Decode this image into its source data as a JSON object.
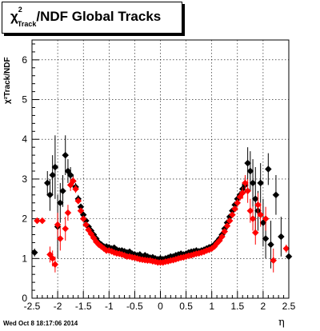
{
  "title": {
    "prefix": "χ",
    "sup": "2",
    "sub": "Track",
    "rest": "/NDF  Global Tracks"
  },
  "timestamp": "Wed Oct  8 18:17:06 2014",
  "xlabel": "η",
  "ylabel": "χ²Track/NDF",
  "chart_data": {
    "type": "scatter",
    "title": "χ²Track/NDF  Global Tracks",
    "xlabel": "η",
    "ylabel": "χ²Track/NDF",
    "xlim": [
      -2.5,
      2.5
    ],
    "ylim": [
      0,
      6.5
    ],
    "xticks": [
      "-2.5",
      "-2",
      "-1.5",
      "-1",
      "-0.5",
      "0",
      "0.5",
      "1",
      "1.5",
      "2",
      "2.5"
    ],
    "yticks": [
      "0",
      "1",
      "2",
      "3",
      "4",
      "5",
      "6"
    ],
    "grid": true,
    "series": [
      {
        "color": "#000000",
        "marker": "diamond",
        "points": [
          [
            -2.45,
            1.15,
            0.1
          ],
          [
            -2.2,
            2.9,
            0.3
          ],
          [
            -2.15,
            2.6,
            0.4
          ],
          [
            -2.1,
            3.1,
            0.5
          ],
          [
            -2.05,
            3.3,
            0.8
          ],
          [
            -2.0,
            1.8,
            0.8
          ],
          [
            -1.95,
            2.4,
            0.5
          ],
          [
            -1.9,
            2.7,
            0.4
          ],
          [
            -1.85,
            3.6,
            0.5
          ],
          [
            -1.8,
            3.2,
            0.3
          ],
          [
            -1.75,
            3.1,
            0.2
          ],
          [
            -1.7,
            2.95,
            0.15
          ],
          [
            -1.65,
            2.8,
            0.1
          ],
          [
            -1.6,
            2.5,
            0.1
          ],
          [
            -1.55,
            2.3,
            0.08
          ],
          [
            -1.5,
            2.1,
            0.07
          ],
          [
            -1.45,
            1.95,
            0.06
          ],
          [
            -1.4,
            1.8,
            0.05
          ],
          [
            -1.35,
            1.7,
            0.05
          ],
          [
            -1.3,
            1.6,
            0.04
          ],
          [
            -1.25,
            1.5,
            0.04
          ],
          [
            -1.2,
            1.4,
            0.04
          ],
          [
            -1.15,
            1.35,
            0.03
          ],
          [
            -1.1,
            1.3,
            0.03
          ],
          [
            -1.05,
            1.3,
            0.03
          ],
          [
            -1.0,
            1.28,
            0.03
          ],
          [
            -0.95,
            1.25,
            0.03
          ],
          [
            -0.9,
            1.27,
            0.03
          ],
          [
            -0.85,
            1.22,
            0.03
          ],
          [
            -0.8,
            1.2,
            0.03
          ],
          [
            -0.75,
            1.2,
            0.03
          ],
          [
            -0.7,
            1.18,
            0.03
          ],
          [
            -0.65,
            1.15,
            0.03
          ],
          [
            -0.6,
            1.17,
            0.03
          ],
          [
            -0.55,
            1.12,
            0.03
          ],
          [
            -0.5,
            1.1,
            0.03
          ],
          [
            -0.45,
            1.08,
            0.03
          ],
          [
            -0.4,
            1.1,
            0.03
          ],
          [
            -0.35,
            1.05,
            0.03
          ],
          [
            -0.3,
            1.08,
            0.03
          ],
          [
            -0.25,
            1.05,
            0.03
          ],
          [
            -0.2,
            1.02,
            0.03
          ],
          [
            -0.15,
            1.03,
            0.03
          ],
          [
            -0.1,
            1.0,
            0.03
          ],
          [
            -0.05,
            0.98,
            0.03
          ],
          [
            0.0,
            1.0,
            0.03
          ],
          [
            0.05,
            0.98,
            0.03
          ],
          [
            0.1,
            1.0,
            0.03
          ],
          [
            0.15,
            1.02,
            0.03
          ],
          [
            0.2,
            1.05,
            0.03
          ],
          [
            0.25,
            1.05,
            0.03
          ],
          [
            0.3,
            1.08,
            0.03
          ],
          [
            0.35,
            1.1,
            0.03
          ],
          [
            0.4,
            1.12,
            0.03
          ],
          [
            0.45,
            1.1,
            0.03
          ],
          [
            0.5,
            1.12,
            0.03
          ],
          [
            0.55,
            1.15,
            0.03
          ],
          [
            0.6,
            1.17,
            0.03
          ],
          [
            0.65,
            1.18,
            0.03
          ],
          [
            0.7,
            1.2,
            0.03
          ],
          [
            0.75,
            1.18,
            0.03
          ],
          [
            0.8,
            1.2,
            0.03
          ],
          [
            0.85,
            1.22,
            0.03
          ],
          [
            0.9,
            1.25,
            0.03
          ],
          [
            0.95,
            1.28,
            0.03
          ],
          [
            1.0,
            1.3,
            0.03
          ],
          [
            1.05,
            1.35,
            0.04
          ],
          [
            1.1,
            1.42,
            0.04
          ],
          [
            1.15,
            1.5,
            0.04
          ],
          [
            1.2,
            1.6,
            0.05
          ],
          [
            1.25,
            1.75,
            0.05
          ],
          [
            1.3,
            1.9,
            0.05
          ],
          [
            1.35,
            2.05,
            0.06
          ],
          [
            1.4,
            2.2,
            0.07
          ],
          [
            1.45,
            2.35,
            0.08
          ],
          [
            1.5,
            2.5,
            0.1
          ],
          [
            1.55,
            2.6,
            0.1
          ],
          [
            1.6,
            2.75,
            0.15
          ],
          [
            1.65,
            2.85,
            0.2
          ],
          [
            1.7,
            3.4,
            0.4
          ],
          [
            1.75,
            3.2,
            0.5
          ],
          [
            1.8,
            2.9,
            0.6
          ],
          [
            1.85,
            2.5,
            0.8
          ],
          [
            1.9,
            2.2,
            0.5
          ],
          [
            1.95,
            2.9,
            0.5
          ],
          [
            2.0,
            1.9,
            0.6
          ],
          [
            2.05,
            1.5,
            0.5
          ],
          [
            2.1,
            3.25,
            0.4
          ],
          [
            2.15,
            1.35,
            0.6
          ],
          [
            2.25,
            2.6,
            0.5
          ],
          [
            2.35,
            1.55,
            0.5
          ],
          [
            2.5,
            1.05,
            0.1
          ]
        ]
      },
      {
        "color": "#ff0000",
        "marker": "diamond",
        "points": [
          [
            -2.4,
            1.95,
            0.05
          ],
          [
            -2.3,
            1.95,
            0.05
          ],
          [
            -2.15,
            1.1,
            0.2
          ],
          [
            -2.1,
            1.0,
            0.2
          ],
          [
            -2.05,
            0.85,
            0.2
          ],
          [
            -2.0,
            1.85,
            0.3
          ],
          [
            -1.95,
            1.5,
            0.3
          ],
          [
            -1.85,
            1.75,
            0.3
          ],
          [
            -1.8,
            2.15,
            0.2
          ],
          [
            -1.75,
            2.85,
            0.15
          ],
          [
            -1.7,
            2.95,
            0.1
          ],
          [
            -1.65,
            2.75,
            0.1
          ],
          [
            -1.6,
            2.45,
            0.08
          ],
          [
            -1.55,
            2.2,
            0.07
          ],
          [
            -1.5,
            2.0,
            0.06
          ],
          [
            -1.45,
            1.85,
            0.05
          ],
          [
            -1.4,
            1.72,
            0.05
          ],
          [
            -1.35,
            1.62,
            0.05
          ],
          [
            -1.3,
            1.52,
            0.04
          ],
          [
            -1.25,
            1.42,
            0.04
          ],
          [
            -1.2,
            1.35,
            0.04
          ],
          [
            -1.15,
            1.3,
            0.03
          ],
          [
            -1.1,
            1.25,
            0.03
          ],
          [
            -1.05,
            1.2,
            0.03
          ],
          [
            -1.0,
            1.2,
            0.03
          ],
          [
            -0.95,
            1.18,
            0.03
          ],
          [
            -0.9,
            1.15,
            0.03
          ],
          [
            -0.85,
            1.13,
            0.03
          ],
          [
            -0.8,
            1.12,
            0.03
          ],
          [
            -0.75,
            1.1,
            0.03
          ],
          [
            -0.7,
            1.08,
            0.03
          ],
          [
            -0.65,
            1.05,
            0.03
          ],
          [
            -0.6,
            1.05,
            0.03
          ],
          [
            -0.55,
            1.03,
            0.03
          ],
          [
            -0.5,
            1.02,
            0.03
          ],
          [
            -0.45,
            1.0,
            0.03
          ],
          [
            -0.4,
            0.98,
            0.03
          ],
          [
            -0.35,
            0.97,
            0.03
          ],
          [
            -0.3,
            0.96,
            0.03
          ],
          [
            -0.25,
            0.95,
            0.03
          ],
          [
            -0.2,
            0.95,
            0.03
          ],
          [
            -0.15,
            0.93,
            0.03
          ],
          [
            -0.1,
            0.92,
            0.03
          ],
          [
            -0.05,
            0.9,
            0.03
          ],
          [
            0.0,
            0.9,
            0.03
          ],
          [
            0.05,
            0.9,
            0.03
          ],
          [
            0.1,
            0.92,
            0.03
          ],
          [
            0.15,
            0.93,
            0.03
          ],
          [
            0.2,
            0.95,
            0.03
          ],
          [
            0.25,
            0.96,
            0.03
          ],
          [
            0.3,
            0.98,
            0.03
          ],
          [
            0.35,
            1.0,
            0.03
          ],
          [
            0.4,
            1.02,
            0.03
          ],
          [
            0.45,
            1.03,
            0.03
          ],
          [
            0.5,
            1.05,
            0.03
          ],
          [
            0.55,
            1.07,
            0.03
          ],
          [
            0.6,
            1.08,
            0.03
          ],
          [
            0.65,
            1.1,
            0.03
          ],
          [
            0.7,
            1.12,
            0.03
          ],
          [
            0.75,
            1.13,
            0.03
          ],
          [
            0.8,
            1.15,
            0.03
          ],
          [
            0.85,
            1.17,
            0.03
          ],
          [
            0.9,
            1.2,
            0.03
          ],
          [
            0.95,
            1.22,
            0.03
          ],
          [
            1.0,
            1.25,
            0.03
          ],
          [
            1.05,
            1.3,
            0.04
          ],
          [
            1.1,
            1.38,
            0.04
          ],
          [
            1.15,
            1.45,
            0.04
          ],
          [
            1.2,
            1.55,
            0.05
          ],
          [
            1.25,
            1.68,
            0.05
          ],
          [
            1.3,
            1.82,
            0.05
          ],
          [
            1.35,
            1.95,
            0.06
          ],
          [
            1.4,
            2.1,
            0.07
          ],
          [
            1.45,
            2.25,
            0.08
          ],
          [
            1.5,
            2.4,
            0.1
          ],
          [
            1.55,
            2.55,
            0.1
          ],
          [
            1.6,
            2.65,
            0.15
          ],
          [
            1.65,
            2.9,
            0.2
          ],
          [
            1.7,
            2.7,
            0.3
          ],
          [
            1.75,
            2.2,
            0.3
          ],
          [
            1.8,
            2.0,
            0.3
          ],
          [
            1.85,
            1.65,
            0.3
          ],
          [
            1.9,
            2.35,
            0.3
          ],
          [
            1.95,
            2.1,
            0.3
          ],
          [
            2.05,
            2.0,
            0.3
          ],
          [
            2.2,
            0.95,
            0.3
          ],
          [
            2.45,
            1.25,
            0.1
          ]
        ]
      }
    ]
  }
}
